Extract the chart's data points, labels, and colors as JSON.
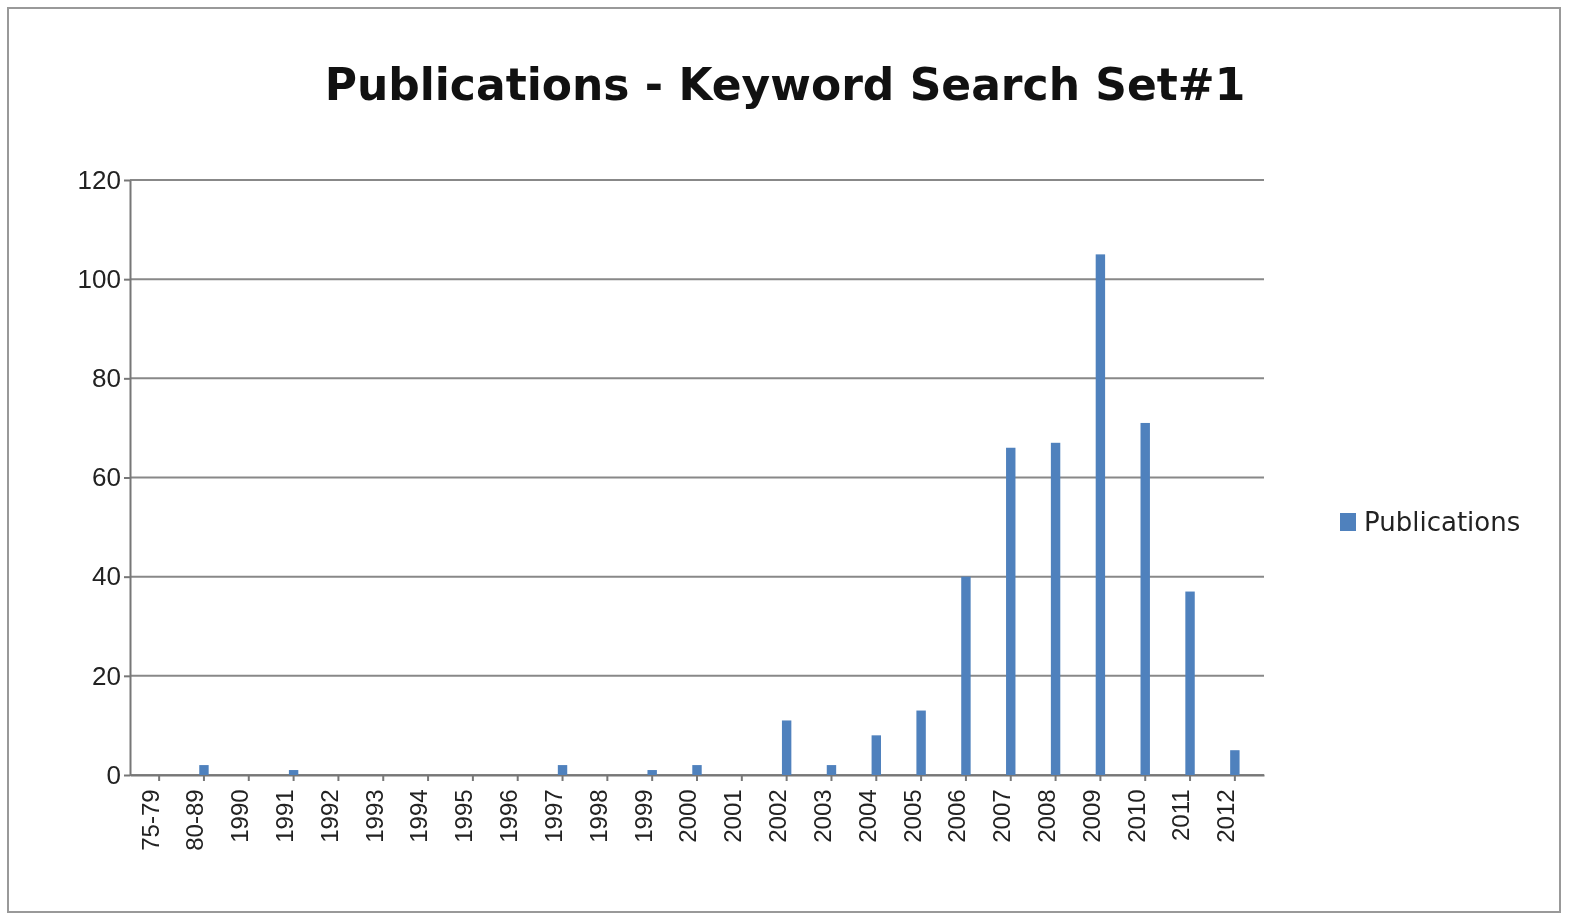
{
  "chart_data": {
    "type": "bar",
    "title": "Publications - Keyword Search Set#1",
    "categories": [
      "75-79",
      "80-89",
      "1990",
      "1991",
      "1992",
      "1993",
      "1994",
      "1995",
      "1996",
      "1997",
      "1998",
      "1999",
      "2000",
      "2001",
      "2002",
      "2003",
      "2004",
      "2005",
      "2006",
      "2007",
      "2008",
      "2009",
      "2010",
      "2011",
      "2012"
    ],
    "series": [
      {
        "name": "Publications",
        "color": "#4f81bd",
        "values": [
          0,
          2,
          0,
          1,
          0,
          0,
          0,
          0,
          0,
          2,
          0,
          1,
          2,
          0,
          11,
          2,
          8,
          13,
          40,
          66,
          67,
          105,
          71,
          37,
          5
        ]
      }
    ],
    "ylim": [
      0,
      120
    ],
    "yticks": [
      0,
      20,
      40,
      60,
      80,
      100,
      120
    ],
    "grid": "y",
    "legend": "right"
  }
}
